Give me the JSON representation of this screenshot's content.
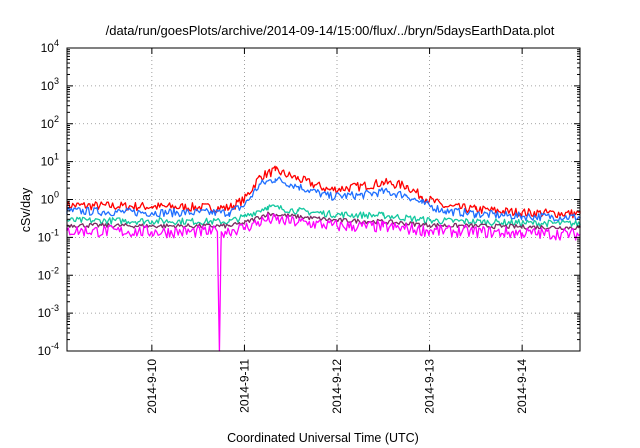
{
  "chart_data": {
    "type": "line",
    "title": "/data/run/goesPlots/archive/2014-09-14/15:00/flux/../bryn/5daysEarthData.plot",
    "xlabel": "Coordinated Universal Time (UTC)",
    "ylabel": "cSv/day",
    "yscale": "log",
    "ylim": [
      0.0001,
      10000
    ],
    "y_ticks": [
      {
        "base": "10",
        "exp": "-4",
        "value": 0.0001
      },
      {
        "base": "10",
        "exp": "-3",
        "value": 0.001
      },
      {
        "base": "10",
        "exp": "-2",
        "value": 0.01
      },
      {
        "base": "10",
        "exp": "-1",
        "value": 0.1
      },
      {
        "base": "10",
        "exp": "0",
        "value": 1
      },
      {
        "base": "10",
        "exp": "1",
        "value": 10
      },
      {
        "base": "10",
        "exp": "2",
        "value": 100
      },
      {
        "base": "10",
        "exp": "3",
        "value": 1000
      },
      {
        "base": "10",
        "exp": "4",
        "value": 10000
      }
    ],
    "xlim": [
      "2014-09-09T02:00",
      "2014-09-14T15:00"
    ],
    "x_ticks": [
      "2014-9-10",
      "2014-9-11",
      "2014-9-12",
      "2014-9-13",
      "2014-9-14"
    ],
    "grid": true,
    "legend": "none",
    "series": [
      {
        "color": "#ff0000",
        "x": [
          "2014-09-09T02:00",
          "2014-09-10T00:00",
          "2014-09-10T20:00",
          "2014-09-11T00:00",
          "2014-09-11T04:00",
          "2014-09-11T08:00",
          "2014-09-11T14:00",
          "2014-09-11T22:00",
          "2014-09-12T06:00",
          "2014-09-12T12:00",
          "2014-09-12T18:00",
          "2014-09-12T22:00",
          "2014-09-13T04:00",
          "2014-09-13T12:00",
          "2014-09-14T00:00",
          "2014-09-14T15:00"
        ],
        "y": [
          0.7,
          0.65,
          0.6,
          1.0,
          4.0,
          5.8,
          3.5,
          1.8,
          2.2,
          2.8,
          2.3,
          1.2,
          0.65,
          0.55,
          0.45,
          0.42
        ]
      },
      {
        "color": "#1f6fff",
        "x": [
          "2014-09-09T02:00",
          "2014-09-10T00:00",
          "2014-09-10T20:00",
          "2014-09-11T00:00",
          "2014-09-11T04:00",
          "2014-09-11T08:00",
          "2014-09-11T14:00",
          "2014-09-11T22:00",
          "2014-09-12T06:00",
          "2014-09-12T12:00",
          "2014-09-12T18:00",
          "2014-09-12T22:00",
          "2014-09-13T04:00",
          "2014-09-13T12:00",
          "2014-09-14T00:00",
          "2014-09-14T15:00"
        ],
        "y": [
          0.5,
          0.45,
          0.45,
          0.7,
          2.5,
          3.5,
          2.2,
          1.2,
          1.3,
          1.6,
          1.3,
          0.8,
          0.5,
          0.42,
          0.36,
          0.34
        ]
      },
      {
        "color": "#14c8a0",
        "x": [
          "2014-09-09T02:00",
          "2014-09-10T00:00",
          "2014-09-10T20:00",
          "2014-09-11T00:00",
          "2014-09-11T06:00",
          "2014-09-11T14:00",
          "2014-09-12T00:00",
          "2014-09-12T12:00",
          "2014-09-13T00:00",
          "2014-09-14T00:00",
          "2014-09-14T15:00"
        ],
        "y": [
          0.28,
          0.27,
          0.26,
          0.35,
          0.65,
          0.5,
          0.4,
          0.38,
          0.28,
          0.24,
          0.23
        ]
      },
      {
        "color": "#7a2a60",
        "x": [
          "2014-09-09T02:00",
          "2014-09-10T00:00",
          "2014-09-10T20:00",
          "2014-09-11T00:00",
          "2014-09-11T06:00",
          "2014-09-11T14:00",
          "2014-09-12T00:00",
          "2014-09-12T12:00",
          "2014-09-13T00:00",
          "2014-09-14T00:00",
          "2014-09-14T15:00"
        ],
        "y": [
          0.21,
          0.2,
          0.2,
          0.24,
          0.42,
          0.35,
          0.28,
          0.26,
          0.21,
          0.19,
          0.18
        ]
      },
      {
        "color": "#ff00ff",
        "x": [
          "2014-09-09T02:00",
          "2014-09-10T00:00",
          "2014-09-10T17:00",
          "2014-09-10T17:30",
          "2014-09-10T18:00",
          "2014-09-10T20:00",
          "2014-09-11T00:00",
          "2014-09-11T06:00",
          "2014-09-11T14:00",
          "2014-09-12T00:00",
          "2014-09-12T12:00",
          "2014-09-13T00:00",
          "2014-09-14T00:00",
          "2014-09-14T15:00"
        ],
        "y": [
          0.15,
          0.14,
          0.14,
          0.0001,
          0.14,
          0.15,
          0.18,
          0.3,
          0.25,
          0.2,
          0.19,
          0.15,
          0.13,
          0.12
        ]
      }
    ]
  }
}
